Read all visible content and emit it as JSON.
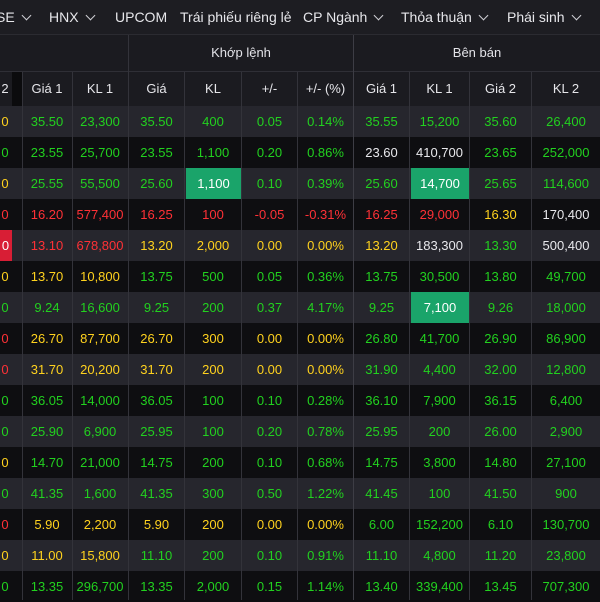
{
  "nav": {
    "items": [
      {
        "label": "SE",
        "chevron": true
      },
      {
        "label": "HNX",
        "chevron": true
      },
      {
        "label": "UPCOM",
        "chevron": false
      },
      {
        "label": "Trái phiếu riêng lẻ",
        "chevron": false
      },
      {
        "label": "CP Ngành",
        "chevron": true
      },
      {
        "label": "Thỏa thuận",
        "chevron": true
      },
      {
        "label": "Phái sinh",
        "chevron": true
      }
    ]
  },
  "groups": {
    "khop_lenh": "Khớp lệnh",
    "ben_ban": "Bên bán"
  },
  "columns": [
    "2",
    "Giá 1",
    "KL 1",
    "Giá",
    "KL",
    "+/-",
    "+/- (%)",
    "Giá 1",
    "KL 1",
    "Giá 2",
    "KL 2"
  ],
  "colors": {
    "up": "#22d11f",
    "down": "#ff3136",
    "reference": "#ffd21e",
    "highlight_up": "#1aa46a",
    "highlight_down": "#d81e35"
  },
  "rows": [
    [
      "0",
      "35.50",
      "23,300",
      "35.50",
      "400",
      "0.05",
      "0.14%",
      "35.55",
      "15,200",
      "35.60",
      "26,400"
    ],
    [
      "0",
      "23.55",
      "25,700",
      "23.55",
      "1,100",
      "0.20",
      "0.86%",
      "23.60",
      "410,700",
      "23.65",
      "252,000"
    ],
    [
      "0",
      "25.55",
      "55,500",
      "25.60",
      "1,100",
      "0.10",
      "0.39%",
      "25.60",
      "14,700",
      "25.65",
      "114,600"
    ],
    [
      "0",
      "16.20",
      "577,400",
      "16.25",
      "100",
      "-0.05",
      "-0.31%",
      "16.25",
      "29,000",
      "16.30",
      "170,400"
    ],
    [
      "0",
      "13.10",
      "678,800",
      "13.20",
      "2,000",
      "0.00",
      "0.00%",
      "13.20",
      "183,300",
      "13.30",
      "500,400"
    ],
    [
      "0",
      "13.70",
      "10,800",
      "13.75",
      "500",
      "0.05",
      "0.36%",
      "13.75",
      "30,500",
      "13.80",
      "49,700"
    ],
    [
      "0",
      "9.24",
      "16,600",
      "9.25",
      "200",
      "0.37",
      "4.17%",
      "9.25",
      "7,100",
      "9.26",
      "18,000"
    ],
    [
      "0",
      "26.70",
      "87,700",
      "26.70",
      "300",
      "0.00",
      "0.00%",
      "26.80",
      "41,700",
      "26.90",
      "86,900"
    ],
    [
      "0",
      "31.70",
      "20,200",
      "31.70",
      "200",
      "0.00",
      "0.00%",
      "31.90",
      "4,400",
      "32.00",
      "12,800"
    ],
    [
      "0",
      "36.05",
      "14,000",
      "36.05",
      "100",
      "0.10",
      "0.28%",
      "36.10",
      "7,900",
      "36.15",
      "6,400"
    ],
    [
      "0",
      "25.90",
      "6,900",
      "25.95",
      "100",
      "0.20",
      "0.78%",
      "25.95",
      "200",
      "26.00",
      "2,900"
    ],
    [
      "0",
      "14.70",
      "21,000",
      "14.75",
      "200",
      "0.10",
      "0.68%",
      "14.75",
      "3,800",
      "14.80",
      "27,100"
    ],
    [
      "0",
      "41.35",
      "1,600",
      "41.35",
      "300",
      "0.50",
      "1.22%",
      "41.45",
      "100",
      "41.50",
      "900"
    ],
    [
      "0",
      "5.90",
      "2,200",
      "5.90",
      "200",
      "0.00",
      "0.00%",
      "6.00",
      "152,200",
      "6.10",
      "130,700"
    ],
    [
      "0",
      "11.00",
      "15,800",
      "11.10",
      "200",
      "0.10",
      "0.91%",
      "11.10",
      "4,800",
      "11.20",
      "23,800"
    ],
    [
      "0",
      "13.35",
      "296,700",
      "13.35",
      "2,000",
      "0.15",
      "1.14%",
      "13.40",
      "339,400",
      "13.45",
      "707,300"
    ]
  ],
  "row_colors": [
    [
      "y",
      "g",
      "g",
      "g",
      "g",
      "g",
      "g",
      "g",
      "g",
      "g",
      "g"
    ],
    [
      "g",
      "g",
      "g",
      "g",
      "g",
      "g",
      "g",
      "w",
      "w",
      "g",
      "g"
    ],
    [
      "y",
      "g",
      "g",
      "g",
      "hl-g",
      "g",
      "g",
      "g",
      "hl-g",
      "g",
      "g"
    ],
    [
      "r",
      "r",
      "r",
      "r",
      "r",
      "r",
      "r",
      "r",
      "r",
      "y",
      "w"
    ],
    [
      "hl-r",
      "r",
      "r",
      "y",
      "y",
      "y",
      "y",
      "y",
      "w",
      "g",
      "w"
    ],
    [
      "y",
      "y",
      "y",
      "g",
      "g",
      "g",
      "g",
      "g",
      "g",
      "g",
      "g"
    ],
    [
      "g",
      "g",
      "g",
      "g",
      "g",
      "g",
      "g",
      "g",
      "hl-g",
      "g",
      "g"
    ],
    [
      "r",
      "y",
      "y",
      "y",
      "y",
      "y",
      "y",
      "g",
      "g",
      "g",
      "g"
    ],
    [
      "r",
      "y",
      "y",
      "y",
      "y",
      "y",
      "y",
      "g",
      "g",
      "g",
      "g"
    ],
    [
      "g",
      "g",
      "g",
      "g",
      "g",
      "g",
      "g",
      "g",
      "g",
      "g",
      "g"
    ],
    [
      "g",
      "g",
      "g",
      "g",
      "g",
      "g",
      "g",
      "g",
      "g",
      "g",
      "g"
    ],
    [
      "y",
      "g",
      "g",
      "g",
      "g",
      "g",
      "g",
      "g",
      "g",
      "g",
      "g"
    ],
    [
      "g",
      "g",
      "g",
      "g",
      "g",
      "g",
      "g",
      "g",
      "g",
      "g",
      "g"
    ],
    [
      "r",
      "y",
      "y",
      "y",
      "y",
      "y",
      "y",
      "g",
      "g",
      "g",
      "g"
    ],
    [
      "y",
      "y",
      "y",
      "g",
      "g",
      "g",
      "g",
      "g",
      "g",
      "g",
      "g"
    ],
    [
      "g",
      "g",
      "g",
      "g",
      "g",
      "g",
      "g",
      "g",
      "g",
      "g",
      "g"
    ]
  ]
}
